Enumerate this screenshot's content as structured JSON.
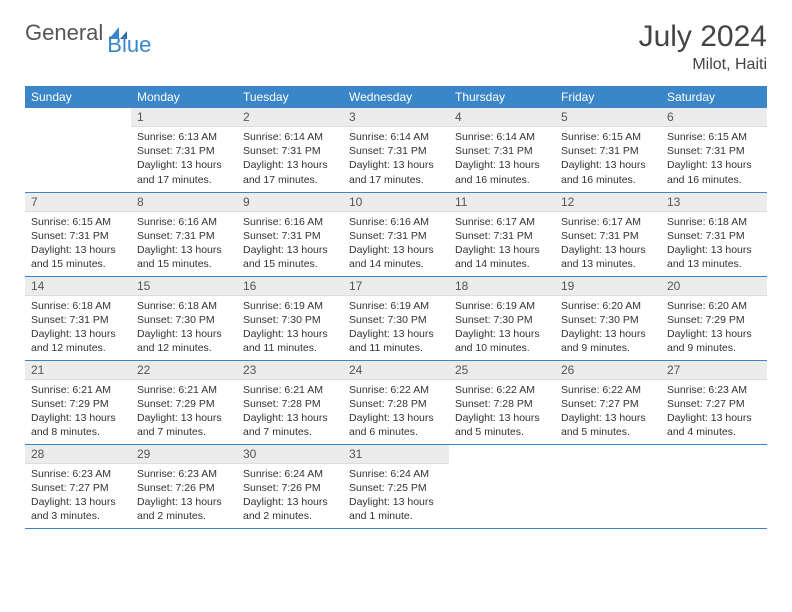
{
  "logo": {
    "general": "General",
    "blue": "Blue"
  },
  "title": "July 2024",
  "location": "Milot, Haiti",
  "weekdays": [
    "Sunday",
    "Monday",
    "Tuesday",
    "Wednesday",
    "Thursday",
    "Friday",
    "Saturday"
  ],
  "colors": {
    "header_bg": "#3a86c8",
    "header_text": "#ffffff",
    "daynum_bg": "#ececec",
    "border": "#3a86c8",
    "body_text": "#333333",
    "title_text": "#444444"
  },
  "weeks": [
    [
      {
        "n": "",
        "sr": "",
        "ss": "",
        "d1": "",
        "d2": "",
        "empty": true
      },
      {
        "n": "1",
        "sr": "Sunrise: 6:13 AM",
        "ss": "Sunset: 7:31 PM",
        "d1": "Daylight: 13 hours",
        "d2": "and 17 minutes."
      },
      {
        "n": "2",
        "sr": "Sunrise: 6:14 AM",
        "ss": "Sunset: 7:31 PM",
        "d1": "Daylight: 13 hours",
        "d2": "and 17 minutes."
      },
      {
        "n": "3",
        "sr": "Sunrise: 6:14 AM",
        "ss": "Sunset: 7:31 PM",
        "d1": "Daylight: 13 hours",
        "d2": "and 17 minutes."
      },
      {
        "n": "4",
        "sr": "Sunrise: 6:14 AM",
        "ss": "Sunset: 7:31 PM",
        "d1": "Daylight: 13 hours",
        "d2": "and 16 minutes."
      },
      {
        "n": "5",
        "sr": "Sunrise: 6:15 AM",
        "ss": "Sunset: 7:31 PM",
        "d1": "Daylight: 13 hours",
        "d2": "and 16 minutes."
      },
      {
        "n": "6",
        "sr": "Sunrise: 6:15 AM",
        "ss": "Sunset: 7:31 PM",
        "d1": "Daylight: 13 hours",
        "d2": "and 16 minutes."
      }
    ],
    [
      {
        "n": "7",
        "sr": "Sunrise: 6:15 AM",
        "ss": "Sunset: 7:31 PM",
        "d1": "Daylight: 13 hours",
        "d2": "and 15 minutes."
      },
      {
        "n": "8",
        "sr": "Sunrise: 6:16 AM",
        "ss": "Sunset: 7:31 PM",
        "d1": "Daylight: 13 hours",
        "d2": "and 15 minutes."
      },
      {
        "n": "9",
        "sr": "Sunrise: 6:16 AM",
        "ss": "Sunset: 7:31 PM",
        "d1": "Daylight: 13 hours",
        "d2": "and 15 minutes."
      },
      {
        "n": "10",
        "sr": "Sunrise: 6:16 AM",
        "ss": "Sunset: 7:31 PM",
        "d1": "Daylight: 13 hours",
        "d2": "and 14 minutes."
      },
      {
        "n": "11",
        "sr": "Sunrise: 6:17 AM",
        "ss": "Sunset: 7:31 PM",
        "d1": "Daylight: 13 hours",
        "d2": "and 14 minutes."
      },
      {
        "n": "12",
        "sr": "Sunrise: 6:17 AM",
        "ss": "Sunset: 7:31 PM",
        "d1": "Daylight: 13 hours",
        "d2": "and 13 minutes."
      },
      {
        "n": "13",
        "sr": "Sunrise: 6:18 AM",
        "ss": "Sunset: 7:31 PM",
        "d1": "Daylight: 13 hours",
        "d2": "and 13 minutes."
      }
    ],
    [
      {
        "n": "14",
        "sr": "Sunrise: 6:18 AM",
        "ss": "Sunset: 7:31 PM",
        "d1": "Daylight: 13 hours",
        "d2": "and 12 minutes."
      },
      {
        "n": "15",
        "sr": "Sunrise: 6:18 AM",
        "ss": "Sunset: 7:30 PM",
        "d1": "Daylight: 13 hours",
        "d2": "and 12 minutes."
      },
      {
        "n": "16",
        "sr": "Sunrise: 6:19 AM",
        "ss": "Sunset: 7:30 PM",
        "d1": "Daylight: 13 hours",
        "d2": "and 11 minutes."
      },
      {
        "n": "17",
        "sr": "Sunrise: 6:19 AM",
        "ss": "Sunset: 7:30 PM",
        "d1": "Daylight: 13 hours",
        "d2": "and 11 minutes."
      },
      {
        "n": "18",
        "sr": "Sunrise: 6:19 AM",
        "ss": "Sunset: 7:30 PM",
        "d1": "Daylight: 13 hours",
        "d2": "and 10 minutes."
      },
      {
        "n": "19",
        "sr": "Sunrise: 6:20 AM",
        "ss": "Sunset: 7:30 PM",
        "d1": "Daylight: 13 hours",
        "d2": "and 9 minutes."
      },
      {
        "n": "20",
        "sr": "Sunrise: 6:20 AM",
        "ss": "Sunset: 7:29 PM",
        "d1": "Daylight: 13 hours",
        "d2": "and 9 minutes."
      }
    ],
    [
      {
        "n": "21",
        "sr": "Sunrise: 6:21 AM",
        "ss": "Sunset: 7:29 PM",
        "d1": "Daylight: 13 hours",
        "d2": "and 8 minutes."
      },
      {
        "n": "22",
        "sr": "Sunrise: 6:21 AM",
        "ss": "Sunset: 7:29 PM",
        "d1": "Daylight: 13 hours",
        "d2": "and 7 minutes."
      },
      {
        "n": "23",
        "sr": "Sunrise: 6:21 AM",
        "ss": "Sunset: 7:28 PM",
        "d1": "Daylight: 13 hours",
        "d2": "and 7 minutes."
      },
      {
        "n": "24",
        "sr": "Sunrise: 6:22 AM",
        "ss": "Sunset: 7:28 PM",
        "d1": "Daylight: 13 hours",
        "d2": "and 6 minutes."
      },
      {
        "n": "25",
        "sr": "Sunrise: 6:22 AM",
        "ss": "Sunset: 7:28 PM",
        "d1": "Daylight: 13 hours",
        "d2": "and 5 minutes."
      },
      {
        "n": "26",
        "sr": "Sunrise: 6:22 AM",
        "ss": "Sunset: 7:27 PM",
        "d1": "Daylight: 13 hours",
        "d2": "and 5 minutes."
      },
      {
        "n": "27",
        "sr": "Sunrise: 6:23 AM",
        "ss": "Sunset: 7:27 PM",
        "d1": "Daylight: 13 hours",
        "d2": "and 4 minutes."
      }
    ],
    [
      {
        "n": "28",
        "sr": "Sunrise: 6:23 AM",
        "ss": "Sunset: 7:27 PM",
        "d1": "Daylight: 13 hours",
        "d2": "and 3 minutes."
      },
      {
        "n": "29",
        "sr": "Sunrise: 6:23 AM",
        "ss": "Sunset: 7:26 PM",
        "d1": "Daylight: 13 hours",
        "d2": "and 2 minutes."
      },
      {
        "n": "30",
        "sr": "Sunrise: 6:24 AM",
        "ss": "Sunset: 7:26 PM",
        "d1": "Daylight: 13 hours",
        "d2": "and 2 minutes."
      },
      {
        "n": "31",
        "sr": "Sunrise: 6:24 AM",
        "ss": "Sunset: 7:25 PM",
        "d1": "Daylight: 13 hours",
        "d2": "and 1 minute."
      },
      {
        "n": "",
        "sr": "",
        "ss": "",
        "d1": "",
        "d2": "",
        "empty": true
      },
      {
        "n": "",
        "sr": "",
        "ss": "",
        "d1": "",
        "d2": "",
        "empty": true
      },
      {
        "n": "",
        "sr": "",
        "ss": "",
        "d1": "",
        "d2": "",
        "empty": true
      }
    ]
  ]
}
